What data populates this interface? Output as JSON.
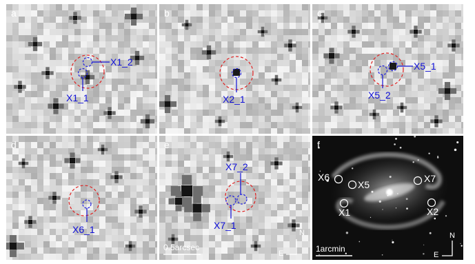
{
  "panels": [
    {
      "letter": "a",
      "labels": [
        "X1_2",
        "X1_1"
      ]
    },
    {
      "letter": "b",
      "labels": [
        "X2_1"
      ]
    },
    {
      "letter": "c",
      "labels": [
        "X5_1",
        "X5_2"
      ]
    },
    {
      "letter": "d",
      "labels": [
        "X6_1"
      ]
    },
    {
      "letter": "e",
      "labels": [
        "X7_2",
        "X7_1"
      ],
      "scalebar": "0.5arcsec",
      "compass": {
        "n": "N",
        "e": "E"
      }
    },
    {
      "letter": "f",
      "labels": [
        "X6",
        "X5",
        "X7",
        "X1",
        "X2"
      ],
      "scalebar": "1arcmin",
      "compass": {
        "n": "N",
        "e": "E"
      }
    }
  ],
  "colors": {
    "annotation": "#1010d8",
    "aperture_large": "#e02020",
    "aperture_small": "#2020e0",
    "background": "#ffffff"
  }
}
